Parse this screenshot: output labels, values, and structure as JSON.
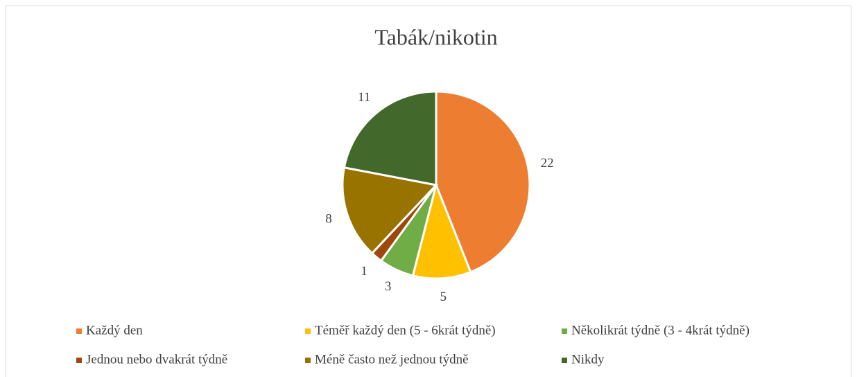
{
  "chart_data": {
    "type": "pie",
    "title": "Tabák/nikotin",
    "categories": [
      "Každý den",
      "Téměř každý den (5 - 6krát týdně)",
      "Několikrát týdně (3 - 4krát týdně)",
      "Jednou nebo dvakrát týdně",
      "Méně často než jednou týdně",
      "Nikdy"
    ],
    "values": [
      22,
      5,
      3,
      1,
      8,
      11
    ],
    "colors": [
      "#ED7D31",
      "#FFC000",
      "#70AD47",
      "#9E480E",
      "#997300",
      "#43682B"
    ],
    "legend": "bottom"
  }
}
